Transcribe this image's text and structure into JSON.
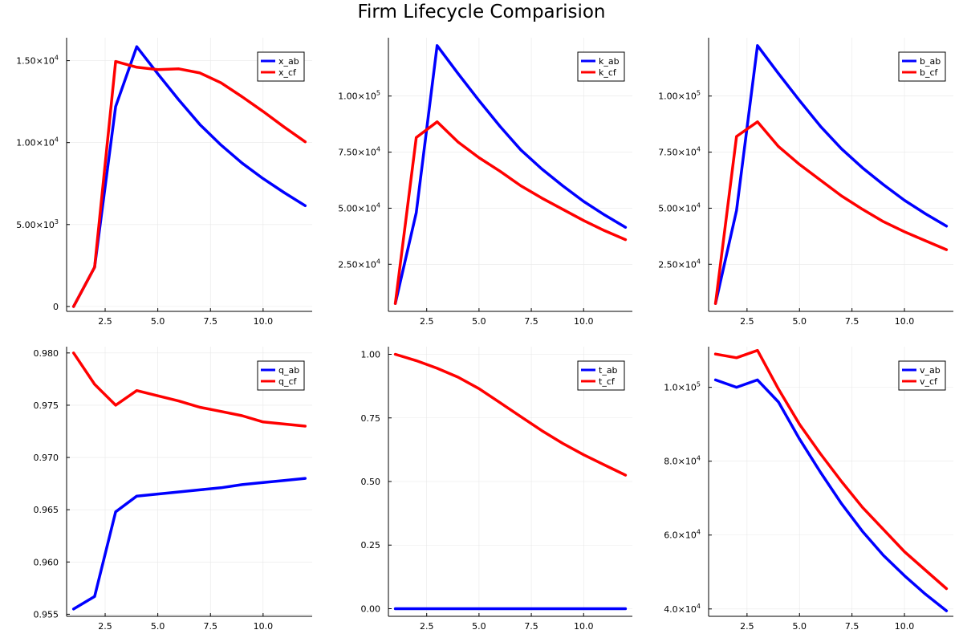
{
  "title": "Firm Lifecycle Comparision",
  "colors": {
    "ab": "#0000ff",
    "cf": "#ff0000",
    "grid": "#e8e8e8",
    "axis": "#000000"
  },
  "chart_data": [
    {
      "type": "line",
      "legend": "top-right",
      "grid": true,
      "x": [
        1,
        2,
        3,
        4,
        5,
        6,
        7,
        8,
        9,
        10,
        11,
        12
      ],
      "xlim": [
        0.67,
        12.33
      ],
      "ylim": [
        -300,
        16400
      ],
      "xticks": [
        2.5,
        5.0,
        7.5,
        10.0
      ],
      "xtick_labels": [
        "2.5",
        "5.0",
        "7.5",
        "10.0"
      ],
      "yticks": [
        0,
        5000,
        10000,
        15000
      ],
      "ytick_labels": [
        [
          "0",
          ""
        ],
        [
          "5.00×10",
          "3"
        ],
        [
          "1.00×10",
          "4"
        ],
        [
          "1.50×10",
          "4"
        ]
      ],
      "series": [
        {
          "name": "x_ab",
          "color": "ab",
          "values": [
            0,
            2400,
            12200,
            15850,
            14200,
            12600,
            11100,
            9850,
            8750,
            7800,
            6950,
            6150
          ]
        },
        {
          "name": "x_cf",
          "color": "cf",
          "values": [
            0,
            2400,
            14950,
            14600,
            14450,
            14500,
            14250,
            13650,
            12800,
            11900,
            10950,
            10050
          ]
        }
      ]
    },
    {
      "type": "line",
      "legend": "top-right",
      "grid": true,
      "x": [
        1,
        2,
        3,
        4,
        5,
        6,
        7,
        8,
        9,
        10,
        11,
        12
      ],
      "xlim": [
        0.67,
        12.33
      ],
      "ylim": [
        4000,
        126000
      ],
      "xticks": [
        2.5,
        5.0,
        7.5,
        10.0
      ],
      "xtick_labels": [
        "2.5",
        "5.0",
        "7.5",
        "10.0"
      ],
      "yticks": [
        25000,
        50000,
        75000,
        100000
      ],
      "ytick_labels": [
        [
          "2.50×10",
          "4"
        ],
        [
          "5.00×10",
          "4"
        ],
        [
          "7.50×10",
          "4"
        ],
        [
          "1.00×10",
          "5"
        ]
      ],
      "series": [
        {
          "name": "k_ab",
          "color": "ab",
          "values": [
            7500,
            48000,
            122500,
            110000,
            98000,
            86500,
            76000,
            67500,
            60000,
            53000,
            47000,
            41500
          ]
        },
        {
          "name": "k_cf",
          "color": "cf",
          "values": [
            7500,
            81500,
            88500,
            79500,
            72500,
            66500,
            60000,
            54500,
            49500,
            44500,
            40000,
            36000
          ]
        }
      ]
    },
    {
      "type": "line",
      "legend": "top-right",
      "grid": true,
      "x": [
        1,
        2,
        3,
        4,
        5,
        6,
        7,
        8,
        9,
        10,
        11,
        12
      ],
      "xlim": [
        0.67,
        12.33
      ],
      "ylim": [
        4000,
        126000
      ],
      "xticks": [
        2.5,
        5.0,
        7.5,
        10.0
      ],
      "xtick_labels": [
        "2.5",
        "5.0",
        "7.5",
        "10.0"
      ],
      "yticks": [
        25000,
        50000,
        75000,
        100000
      ],
      "ytick_labels": [
        [
          "2.50×10",
          "4"
        ],
        [
          "5.00×10",
          "4"
        ],
        [
          "7.50×10",
          "4"
        ],
        [
          "1.00×10",
          "5"
        ]
      ],
      "series": [
        {
          "name": "b_ab",
          "color": "ab",
          "values": [
            7500,
            49000,
            122500,
            110000,
            98000,
            86500,
            76500,
            68000,
            60500,
            53500,
            47500,
            42000
          ]
        },
        {
          "name": "b_cf",
          "color": "cf",
          "values": [
            7500,
            82000,
            88500,
            77500,
            69500,
            62500,
            55500,
            49500,
            44000,
            39500,
            35500,
            31500
          ]
        }
      ]
    },
    {
      "type": "line",
      "legend": "top-right",
      "grid": true,
      "x": [
        1,
        2,
        3,
        4,
        5,
        6,
        7,
        8,
        9,
        10,
        11,
        12
      ],
      "xlim": [
        0.67,
        12.33
      ],
      "ylim": [
        0.9548,
        0.9806
      ],
      "xticks": [
        2.5,
        5.0,
        7.5,
        10.0
      ],
      "xtick_labels": [
        "2.5",
        "5.0",
        "7.5",
        "10.0"
      ],
      "yticks": [
        0.955,
        0.96,
        0.965,
        0.97,
        0.975,
        0.98
      ],
      "ytick_labels": [
        [
          "0.955",
          ""
        ],
        [
          "0.960",
          ""
        ],
        [
          "0.965",
          ""
        ],
        [
          "0.970",
          ""
        ],
        [
          "0.975",
          ""
        ],
        [
          "0.980",
          ""
        ]
      ],
      "series": [
        {
          "name": "q_ab",
          "color": "ab",
          "values": [
            0.9555,
            0.9567,
            0.9648,
            0.9663,
            0.9665,
            0.9667,
            0.9669,
            0.9671,
            0.9674,
            0.9676,
            0.9678,
            0.968
          ]
        },
        {
          "name": "q_cf",
          "color": "cf",
          "values": [
            0.98,
            0.977,
            0.975,
            0.9764,
            0.9759,
            0.9754,
            0.9748,
            0.9744,
            0.974,
            0.9734,
            0.9732,
            0.973
          ]
        }
      ]
    },
    {
      "type": "line",
      "legend": "top-right",
      "grid": true,
      "x": [
        1,
        2,
        3,
        4,
        5,
        6,
        7,
        8,
        9,
        10,
        11,
        12
      ],
      "xlim": [
        0.67,
        12.33
      ],
      "ylim": [
        -0.03,
        1.03
      ],
      "xticks": [
        2.5,
        5.0,
        7.5,
        10.0
      ],
      "xtick_labels": [
        "2.5",
        "5.0",
        "7.5",
        "10.0"
      ],
      "yticks": [
        0,
        0.25,
        0.5,
        0.75,
        1.0
      ],
      "ytick_labels": [
        [
          "0.00",
          ""
        ],
        [
          "0.25",
          ""
        ],
        [
          "0.50",
          ""
        ],
        [
          "0.75",
          ""
        ],
        [
          "1.00",
          ""
        ]
      ],
      "series": [
        {
          "name": "t_ab",
          "color": "ab",
          "values": [
            0,
            0,
            0,
            0,
            0,
            0,
            0,
            0,
            0,
            0,
            0,
            0
          ]
        },
        {
          "name": "t_cf",
          "color": "cf",
          "values": [
            1.0,
            0.975,
            0.945,
            0.91,
            0.865,
            0.81,
            0.755,
            0.7,
            0.65,
            0.605,
            0.565,
            0.525
          ]
        }
      ]
    },
    {
      "type": "line",
      "legend": "top-right",
      "grid": true,
      "x": [
        1,
        2,
        3,
        4,
        5,
        6,
        7,
        8,
        9,
        10,
        11,
        12
      ],
      "xlim": [
        0.67,
        12.33
      ],
      "ylim": [
        38000,
        111000
      ],
      "xticks": [
        2.5,
        5.0,
        7.5,
        10.0
      ],
      "xtick_labels": [
        "2.5",
        "5.0",
        "7.5",
        "10.0"
      ],
      "yticks": [
        40000,
        60000,
        80000,
        100000
      ],
      "ytick_labels": [
        [
          "4.0×10",
          "4"
        ],
        [
          "6.0×10",
          "4"
        ],
        [
          "8.0×10",
          "4"
        ],
        [
          "1.0×10",
          "5"
        ]
      ],
      "series": [
        {
          "name": "v_ab",
          "color": "ab",
          "values": [
            102000,
            100000,
            102000,
            96000,
            86000,
            77000,
            68500,
            61000,
            54500,
            49000,
            44000,
            39500
          ]
        },
        {
          "name": "v_cf",
          "color": "cf",
          "values": [
            109000,
            108000,
            110000,
            99500,
            90000,
            82000,
            74500,
            67500,
            61500,
            55500,
            50500,
            45500
          ]
        }
      ]
    }
  ]
}
